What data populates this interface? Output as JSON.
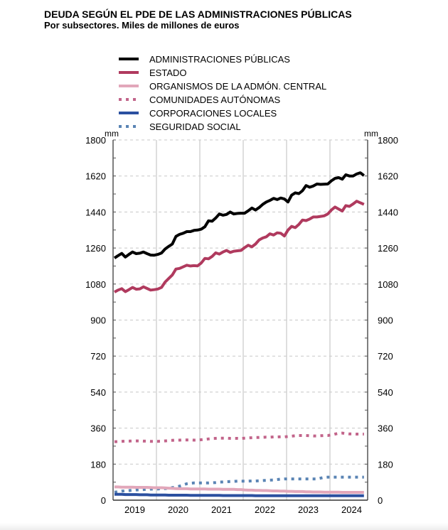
{
  "chart_data": {
    "type": "line",
    "title": "DEUDA SEGÚN EL PDE DE LAS ADMINISTRACIONES PÚBLICAS",
    "subtitle": "Por subsectores. Miles de millones de euros",
    "unit_left": "mm",
    "unit_right": "mm",
    "ylim": [
      0,
      1800
    ],
    "yticks": [
      0,
      180,
      360,
      540,
      720,
      900,
      1080,
      1260,
      1440,
      1620,
      1800
    ],
    "x_start": "2019-01",
    "x_end": "2024-10",
    "frequency": "monthly",
    "xtick_labels": [
      "2019",
      "2020",
      "2021",
      "2022",
      "2023",
      "2024"
    ],
    "grid": true,
    "legend_placement": "top",
    "series": [
      {
        "name": "ADMINISTRACIONES PÚBLICAS",
        "color": "#000000",
        "style": "solid",
        "values": [
          1210,
          1222,
          1233,
          1215,
          1228,
          1240,
          1232,
          1234,
          1240,
          1232,
          1225,
          1224,
          1228,
          1235,
          1255,
          1268,
          1280,
          1318,
          1328,
          1334,
          1342,
          1342,
          1348,
          1350,
          1354,
          1366,
          1396,
          1394,
          1410,
          1430,
          1424,
          1428,
          1440,
          1430,
          1433,
          1434,
          1434,
          1446,
          1460,
          1450,
          1462,
          1478,
          1490,
          1498,
          1508,
          1502,
          1510,
          1505,
          1490,
          1524,
          1536,
          1532,
          1546,
          1572,
          1564,
          1570,
          1580,
          1578,
          1579,
          1580,
          1596,
          1608,
          1612,
          1604,
          1626,
          1620,
          1620,
          1630,
          1636,
          1622
        ]
      },
      {
        "name": "ESTADO",
        "color": "#b03a5e",
        "style": "solid",
        "values": [
          1040,
          1050,
          1057,
          1042,
          1052,
          1063,
          1054,
          1056,
          1066,
          1058,
          1050,
          1052,
          1055,
          1063,
          1090,
          1108,
          1125,
          1155,
          1158,
          1166,
          1174,
          1170,
          1172,
          1171,
          1185,
          1208,
          1206,
          1218,
          1236,
          1230,
          1240,
          1248,
          1238,
          1244,
          1246,
          1248,
          1262,
          1274,
          1266,
          1280,
          1300,
          1310,
          1316,
          1331,
          1325,
          1336,
          1334,
          1320,
          1350,
          1368,
          1362,
          1378,
          1400,
          1397,
          1405,
          1415,
          1415,
          1418,
          1421,
          1430,
          1450,
          1465,
          1455,
          1445,
          1472,
          1468,
          1480,
          1494,
          1486,
          1478
        ]
      },
      {
        "name": "ORGANISMOS DE LA ADMÓN. CENTRAL",
        "color": "#e2a7ba",
        "style": "solid",
        "values": [
          66,
          66,
          65,
          65,
          65,
          65,
          64,
          64,
          64,
          64,
          63,
          62,
          62,
          62,
          61,
          60,
          59,
          58,
          57,
          57,
          57,
          56,
          56,
          56,
          56,
          56,
          55,
          55,
          55,
          55,
          54,
          54,
          54,
          54,
          53,
          53,
          51,
          50,
          50,
          49,
          49,
          48,
          48,
          47,
          46,
          46,
          45,
          45,
          44,
          44,
          43,
          43,
          43,
          42,
          42,
          41,
          41,
          41,
          40,
          40,
          40,
          40,
          40,
          39,
          39,
          39,
          39,
          39,
          39,
          39
        ]
      },
      {
        "name": "COMUNIDADES AUTÓNOMAS",
        "color": "#c2648a",
        "style": "dotted",
        "values": [
          292,
          293,
          294,
          295,
          295,
          296,
          296,
          296,
          295,
          295,
          294,
          294,
          294,
          295,
          296,
          298,
          299,
          300,
          300,
          301,
          301,
          301,
          300,
          300,
          302,
          304,
          306,
          308,
          309,
          310,
          310,
          310,
          309,
          309,
          309,
          308,
          310,
          311,
          312,
          313,
          313,
          314,
          315,
          315,
          316,
          316,
          317,
          316,
          318,
          320,
          322,
          323,
          323,
          323,
          322,
          321,
          321,
          322,
          323,
          323,
          326,
          330,
          334,
          335,
          333,
          331,
          331,
          330,
          330,
          330
        ]
      },
      {
        "name": "CORPORACIONES LOCALES",
        "color": "#2b50a0",
        "style": "solid",
        "values": [
          29,
          29,
          29,
          28,
          28,
          28,
          28,
          27,
          27,
          27,
          26,
          26,
          26,
          26,
          26,
          25,
          25,
          25,
          25,
          25,
          25,
          24,
          24,
          24,
          24,
          24,
          24,
          24,
          24,
          24,
          23,
          23,
          23,
          23,
          23,
          23,
          23,
          23,
          23,
          22,
          22,
          22,
          22,
          22,
          22,
          22,
          22,
          22,
          22,
          22,
          22,
          22,
          22,
          22,
          22,
          22,
          22,
          22,
          22,
          22,
          22,
          22,
          22,
          22,
          22,
          22,
          22,
          22,
          22,
          22
        ]
      },
      {
        "name": "SEGURIDAD SOCIAL",
        "color": "#5a84b4",
        "style": "dotted",
        "values": [
          40,
          42,
          45,
          47,
          48,
          50,
          51,
          52,
          53,
          54,
          55,
          56,
          56,
          57,
          58,
          60,
          63,
          66,
          70,
          76,
          82,
          85,
          86,
          86,
          86,
          86,
          86,
          87,
          88,
          90,
          91,
          92,
          93,
          94,
          95,
          95,
          95,
          95,
          96,
          96,
          97,
          98,
          99,
          100,
          101,
          103,
          105,
          106,
          106,
          106,
          106,
          106,
          106,
          106,
          106,
          106,
          106,
          110,
          114,
          115,
          115,
          115,
          115,
          115,
          115,
          115,
          115,
          115,
          115,
          115
        ]
      }
    ]
  }
}
